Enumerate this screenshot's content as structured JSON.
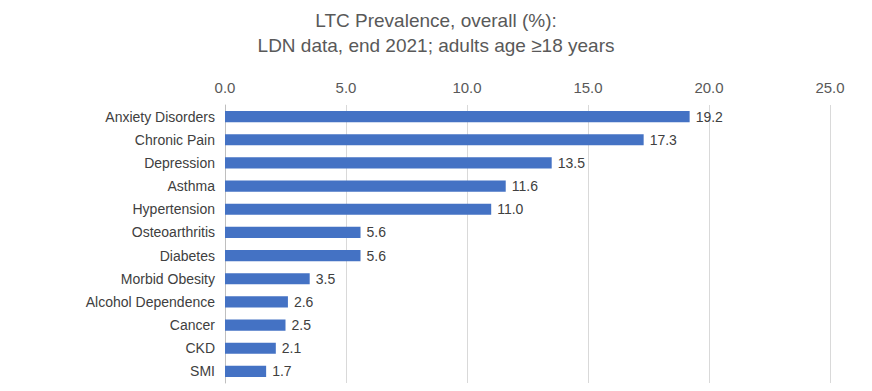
{
  "chart_data": {
    "type": "bar",
    "title": "LTC Prevalence, overall (%):",
    "subtitle": "LDN data, end 2021; adults age ≥18 years",
    "orientation": "horizontal",
    "categories": [
      "Anxiety Disorders",
      "Chronic Pain",
      "Depression",
      "Asthma",
      "Hypertension",
      "Osteoarthritis",
      "Diabetes",
      "Morbid Obesity",
      "Alcohol Dependence",
      "Cancer",
      "CKD",
      "SMI"
    ],
    "values": [
      19.2,
      17.3,
      13.5,
      11.6,
      11.0,
      5.6,
      5.6,
      3.5,
      2.6,
      2.5,
      2.1,
      1.7
    ],
    "value_labels": [
      "19.2",
      "17.3",
      "13.5",
      "11.6",
      "11.0",
      "5.6",
      "5.6",
      "3.5",
      "2.6",
      "2.5",
      "2.1",
      "1.7"
    ],
    "color": "#4472c4",
    "xlim": [
      0,
      25
    ],
    "xticks": [
      {
        "value": 0,
        "label": "0.0"
      },
      {
        "value": 5,
        "label": "5.0"
      },
      {
        "value": 10,
        "label": "10.0"
      },
      {
        "value": 15,
        "label": "15.0"
      },
      {
        "value": 20,
        "label": "20.0"
      },
      {
        "value": 25,
        "label": "25.0"
      }
    ],
    "grid": true,
    "data_labels": true
  }
}
